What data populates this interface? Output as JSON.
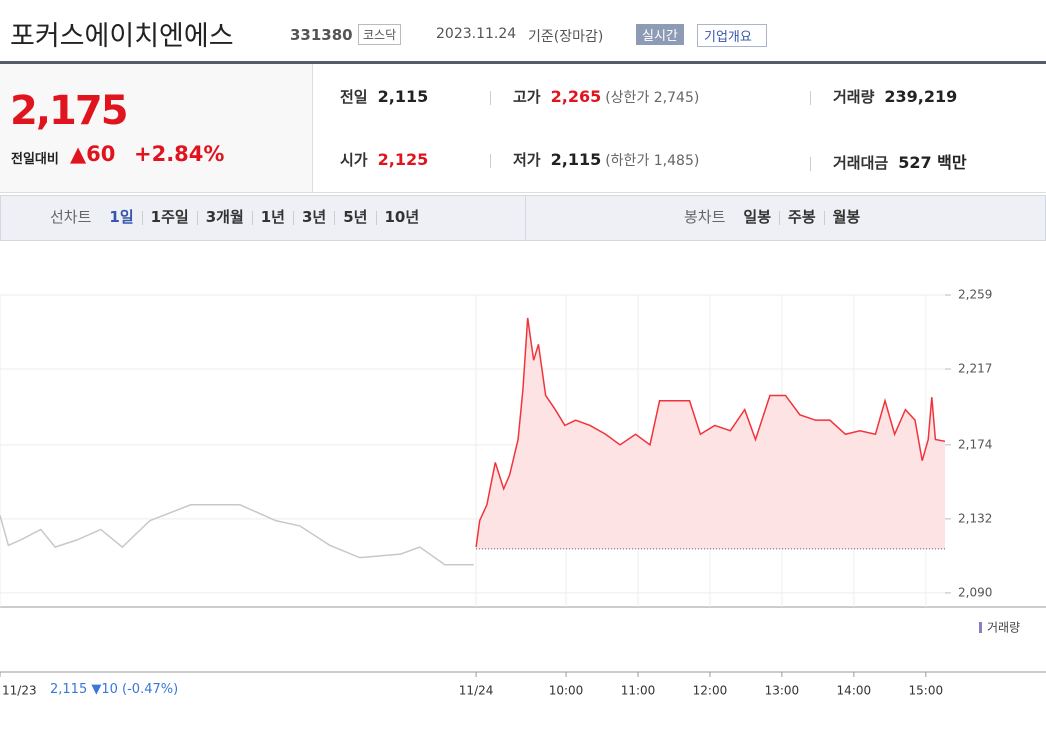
{
  "header": {
    "name": "포커스에이치엔에스",
    "code": "331380",
    "market": "코스닥",
    "date": "2023.11.24",
    "basis": "기준(장마감)",
    "realtime": "실시간",
    "overview": "기업개요"
  },
  "quote": {
    "price": "2,175",
    "change_label": "전일대비",
    "change": "▲60",
    "rate": "+2.84%",
    "stats": [
      {
        "label": "전일",
        "value": "2,115"
      },
      {
        "label": "고가",
        "value": "2,265",
        "extra": "(상한가 2,745)"
      },
      {
        "label": "거래량",
        "value": "239,219"
      },
      {
        "label": "시가",
        "value": "2,125"
      },
      {
        "label": "저가",
        "value": "2,115",
        "extra": "(하한가 1,485)"
      },
      {
        "label": "거래대금",
        "value": "527 백만"
      }
    ]
  },
  "tabs": {
    "line_label": "선차트",
    "line": [
      "1일",
      "1주일",
      "3개월",
      "1년",
      "3년",
      "5년",
      "10년"
    ],
    "candle_label": "봉차트",
    "candle": [
      "일봉",
      "주봉",
      "월봉"
    ]
  },
  "footer": {
    "prev_close": "2,115",
    "change": "▼10",
    "rate": "(-0.47%)"
  },
  "chart_data": {
    "type": "line",
    "legend": "거래량",
    "baseline": 2115,
    "xlim": [
      -412,
      376
    ],
    "ylim": [
      2082,
      2259
    ],
    "xticks": [
      {
        "value": -412,
        "label": "11/23"
      },
      {
        "value": -15,
        "label": "11/24"
      },
      {
        "value": 60,
        "label": "10:00"
      },
      {
        "value": 120,
        "label": "11:00"
      },
      {
        "value": 180,
        "label": "12:00"
      },
      {
        "value": 240,
        "label": "13:00"
      },
      {
        "value": 300,
        "label": "14:00"
      },
      {
        "value": 360,
        "label": "15:00"
      }
    ],
    "yticks": [
      {
        "value": 2090,
        "label": "2,090"
      },
      {
        "value": 2132,
        "label": "2,132"
      },
      {
        "value": 2174,
        "label": "2,174"
      },
      {
        "value": 2217,
        "label": "2,217"
      },
      {
        "value": 2259,
        "label": "2,259"
      }
    ],
    "grid": true,
    "series": [
      {
        "color": "#c8c8c8",
        "x": [
          -412,
          -405,
          -395,
          -378,
          -366,
          -348,
          -328,
          -310,
          -287,
          -253,
          -212,
          -182,
          -162,
          -137,
          -112,
          -78,
          -62,
          -41,
          -17
        ],
        "values": [
          2134,
          2117,
          2120,
          2126,
          2116,
          2120,
          2126,
          2116,
          2131,
          2140,
          2140,
          2131,
          2128,
          2117,
          2110,
          2112,
          2116,
          2106,
          2106
        ]
      },
      {
        "color": "#f2333b",
        "fill": "#fde3e3",
        "x": [
          -15,
          -12,
          -6,
          1,
          8,
          13,
          20,
          24,
          28,
          33,
          37,
          43,
          51,
          59,
          68,
          80,
          93,
          105,
          118,
          130,
          138,
          151,
          163,
          172,
          184,
          197,
          209,
          218,
          230,
          243,
          255,
          268,
          280,
          293,
          305,
          318,
          326,
          334,
          343,
          351,
          357,
          362,
          365,
          368,
          376
        ],
        "values": [
          2116,
          2131,
          2140,
          2164,
          2149,
          2157,
          2177,
          2205,
          2246,
          2222,
          2231,
          2202,
          2194,
          2185,
          2188,
          2185,
          2180,
          2174,
          2180,
          2174,
          2199,
          2199,
          2199,
          2180,
          2185,
          2182,
          2194,
          2177,
          2202,
          2202,
          2191,
          2188,
          2188,
          2180,
          2182,
          2180,
          2199,
          2180,
          2194,
          2188,
          2165,
          2177,
          2201,
          2177,
          2176
        ]
      }
    ]
  }
}
